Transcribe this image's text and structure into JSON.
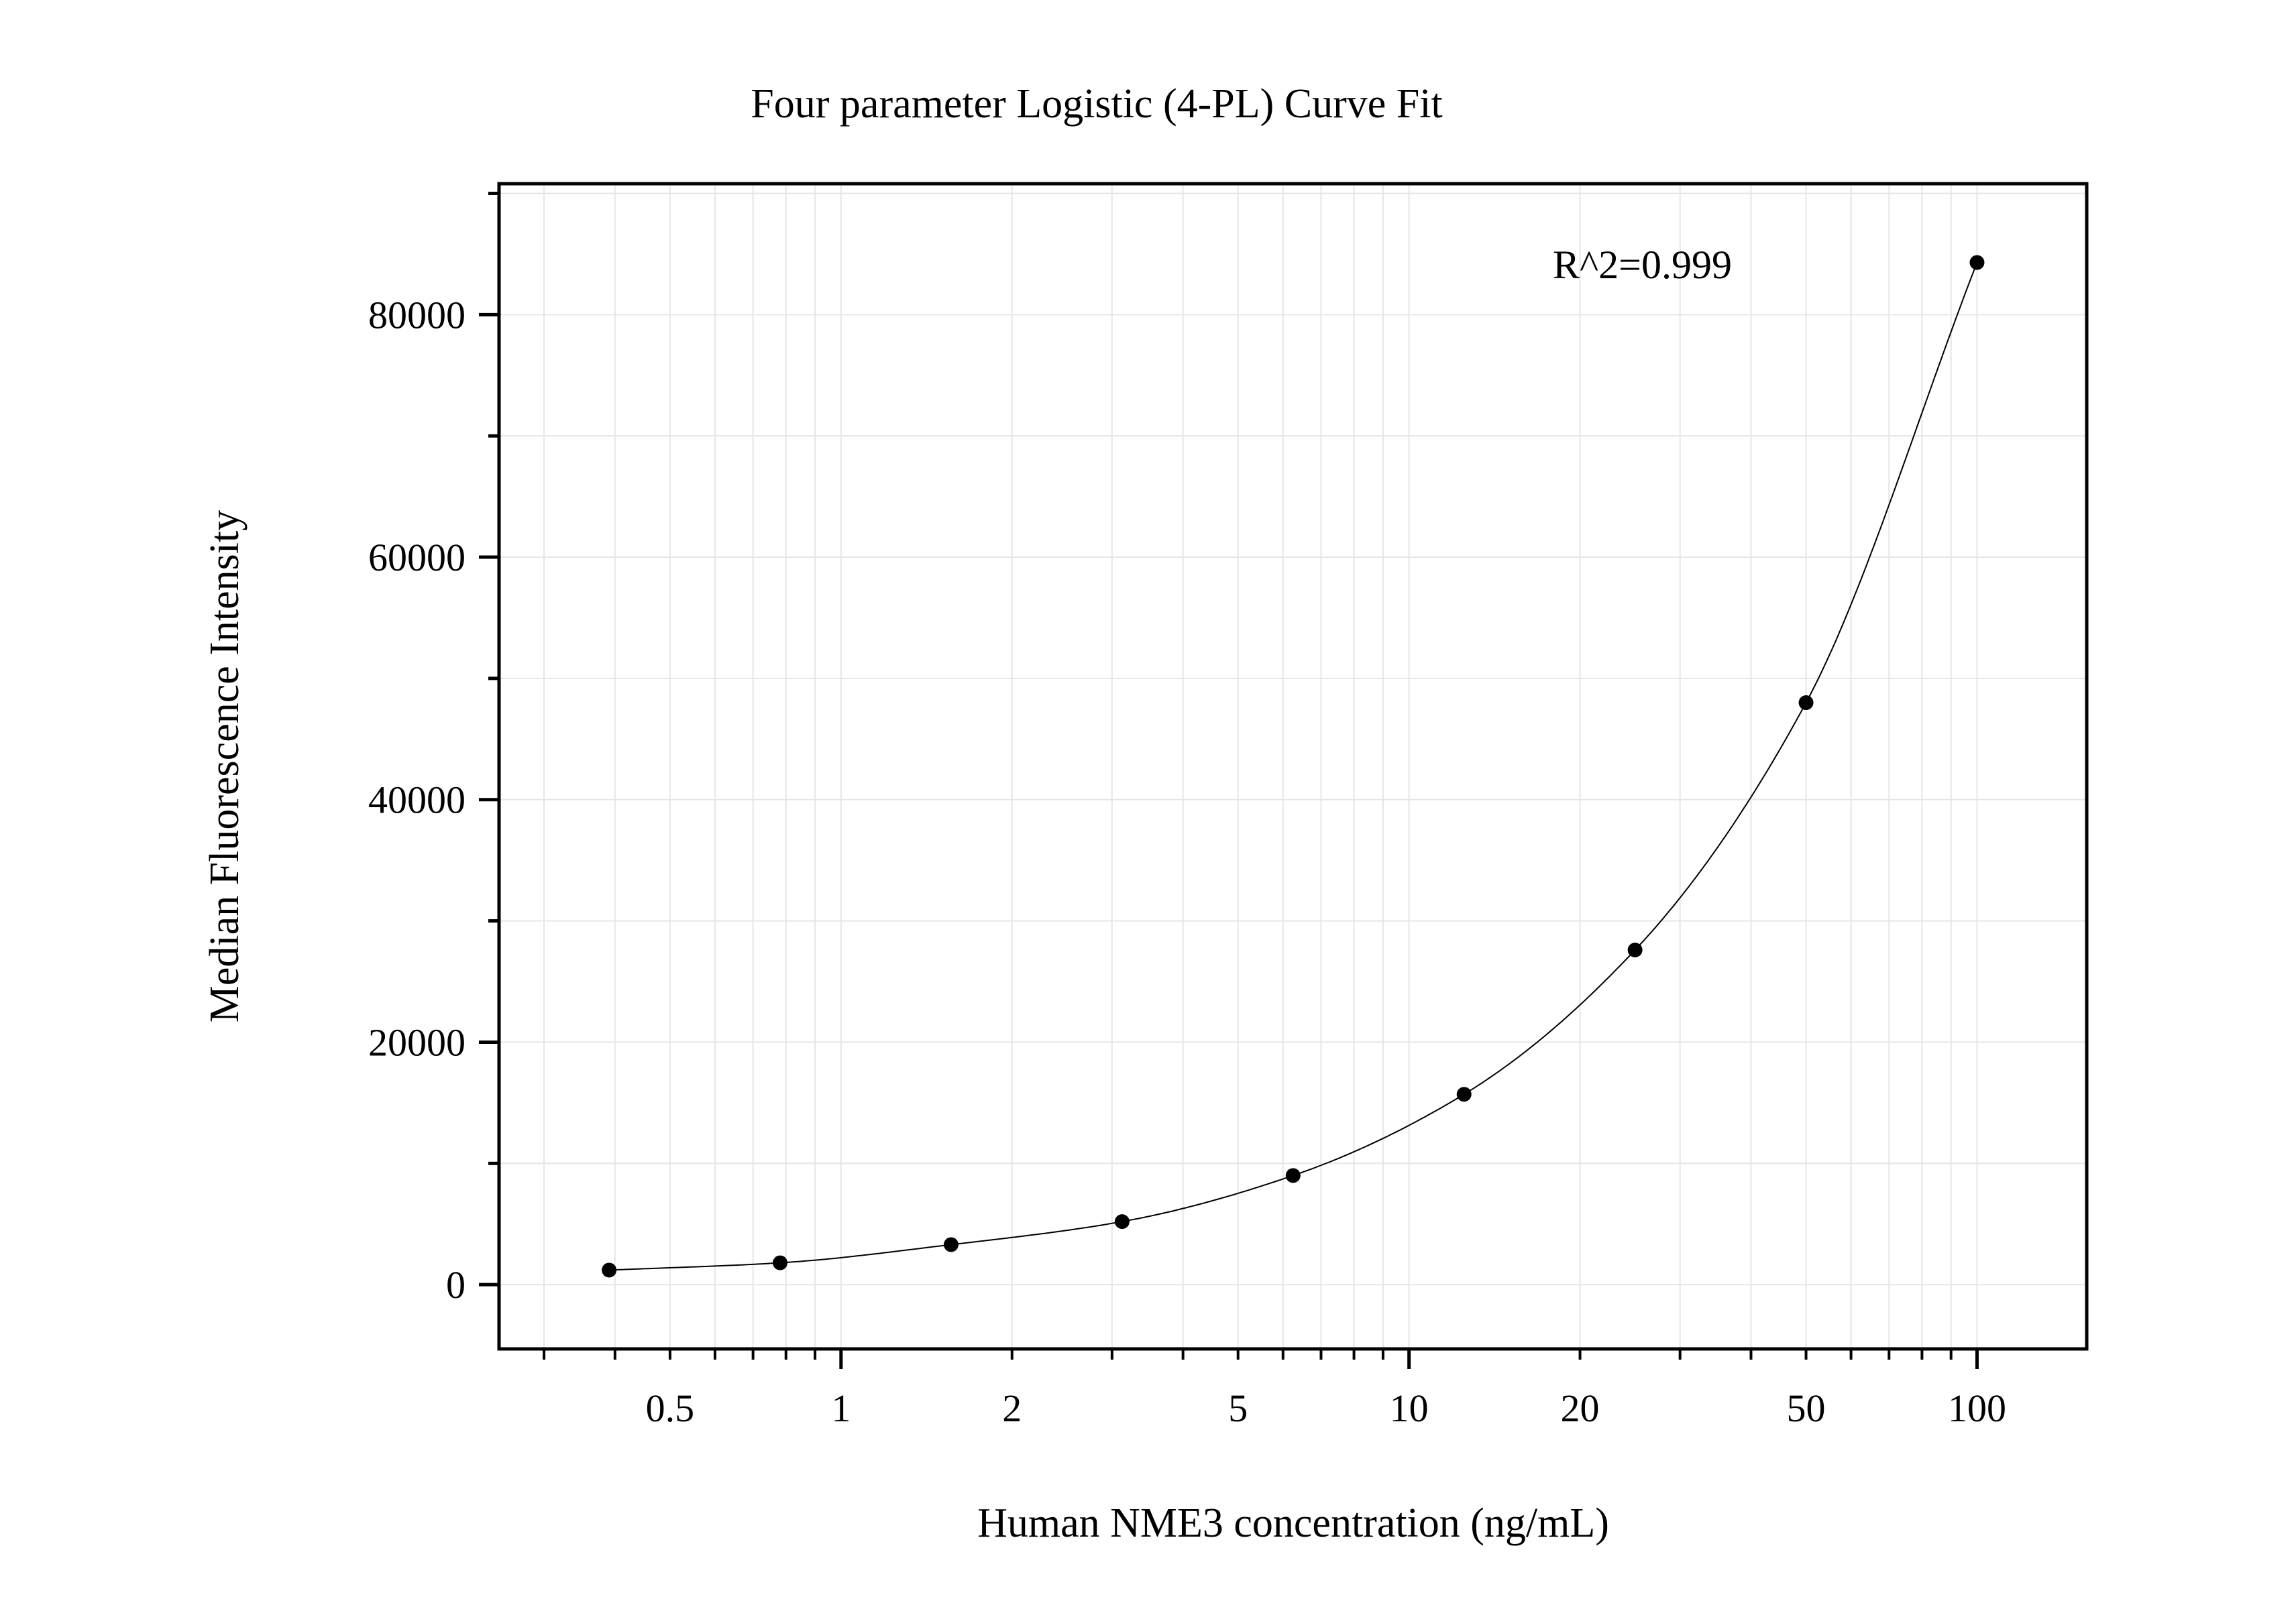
{
  "chart_data": {
    "type": "scatter",
    "title": "Four parameter Logistic (4-PL) Curve Fit",
    "xlabel": "Human NME3 concentration (ng/mL)",
    "ylabel": "Median Fluorescence Intensity",
    "x_scale": "log",
    "xlim": [
      0.25,
      156
    ],
    "ylim": [
      -5300,
      90800
    ],
    "grid": true,
    "x_ticks": [
      0.5,
      1,
      2,
      5,
      10,
      20,
      50,
      100
    ],
    "x_tick_labels": [
      "0.5",
      "1",
      "2",
      "5",
      "10",
      "20",
      "50",
      "100"
    ],
    "y_ticks": [
      0,
      20000,
      40000,
      60000,
      80000
    ],
    "y_tick_labels": [
      "0",
      "20000",
      "40000",
      "60000",
      "80000"
    ],
    "annotation": "R^2=0.999",
    "fit": "4-PL curve",
    "series": [
      {
        "x": [
          0.390625,
          0.78125,
          1.5625,
          3.125,
          6.25,
          12.5,
          25,
          50,
          100
        ],
        "y": [
          1200,
          1800,
          3300,
          5200,
          9000,
          15700,
          27600,
          48000,
          84300
        ]
      }
    ],
    "colors": {
      "points": "#000000",
      "curve": "#000000",
      "grid": "#e6e6e6"
    }
  }
}
